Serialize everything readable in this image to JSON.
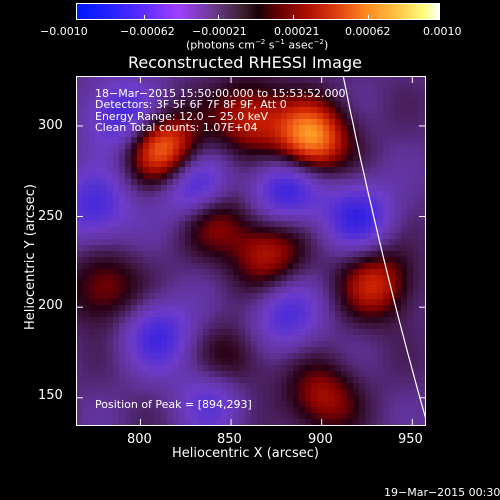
{
  "colorbar": {
    "tick_labels": [
      "−0.0010",
      "−0.00062",
      "−0.00021",
      "0.00021",
      "0.00062",
      "0.0010"
    ],
    "unit_label_main": "(photons cm",
    "unit_sup1": "−2",
    "unit_mid1": " s",
    "unit_sup2": "−1",
    "unit_mid2": " asec",
    "unit_sup3": "−2",
    "unit_end": ")"
  },
  "plot": {
    "title": "Reconstructed RHESSI Image",
    "x_axis_label": "Heliocentric X (arcsec)",
    "y_axis_label": "Heliocentric Y (arcsec)",
    "x_ticks": [
      "800",
      "850",
      "900",
      "950"
    ],
    "y_ticks": [
      "150",
      "200",
      "250",
      "300"
    ],
    "info_lines": [
      "18−Mar−2015 15:50:00.000 to 15:53:52.000",
      "Detectors: 3F 5F 6F 7F 8F 9F, Att 0",
      "Energy Range: 12.0 − 25.0 keV",
      "Clean    Total counts: 1.07E+04"
    ],
    "peak_text": "Position of Peak = [894,293]"
  },
  "footer": {
    "timestamp": "19−Mar−2015 00:30"
  },
  "chart_data": {
    "type": "heatmap",
    "title": "Reconstructed RHESSI Image",
    "xlabel": "Heliocentric X (arcsec)",
    "ylabel": "Heliocentric Y (arcsec)",
    "xlim": [
      765,
      957
    ],
    "ylim": [
      135,
      327
    ],
    "colorbar_range": [
      -0.001,
      0.001
    ],
    "colorbar_ticks": [
      -0.001,
      -0.00062,
      -0.00021,
      0.00021,
      0.00062,
      0.001
    ],
    "peak_position": [
      894,
      293
    ],
    "hot_spots": [
      {
        "x": 894,
        "y": 293,
        "level": 1.0
      },
      {
        "x": 812,
        "y": 288,
        "level": 0.9
      },
      {
        "x": 860,
        "y": 305,
        "level": 0.6
      },
      {
        "x": 930,
        "y": 213,
        "level": 0.6
      },
      {
        "x": 870,
        "y": 230,
        "level": 0.55
      },
      {
        "x": 840,
        "y": 250,
        "level": 0.5
      },
      {
        "x": 780,
        "y": 210,
        "level": 0.45
      },
      {
        "x": 900,
        "y": 150,
        "level": 0.5
      },
      {
        "x": 850,
        "y": 170,
        "level": 0.35
      }
    ],
    "cold_spots": [
      {
        "x": 790,
        "y": 305,
        "level": -0.6
      },
      {
        "x": 830,
        "y": 265,
        "level": -0.65
      },
      {
        "x": 880,
        "y": 265,
        "level": -0.6
      },
      {
        "x": 920,
        "y": 250,
        "level": -0.55
      },
      {
        "x": 775,
        "y": 255,
        "level": -0.5
      },
      {
        "x": 810,
        "y": 185,
        "level": -0.5
      },
      {
        "x": 880,
        "y": 195,
        "level": -0.45
      },
      {
        "x": 840,
        "y": 150,
        "level": -0.4
      }
    ]
  }
}
